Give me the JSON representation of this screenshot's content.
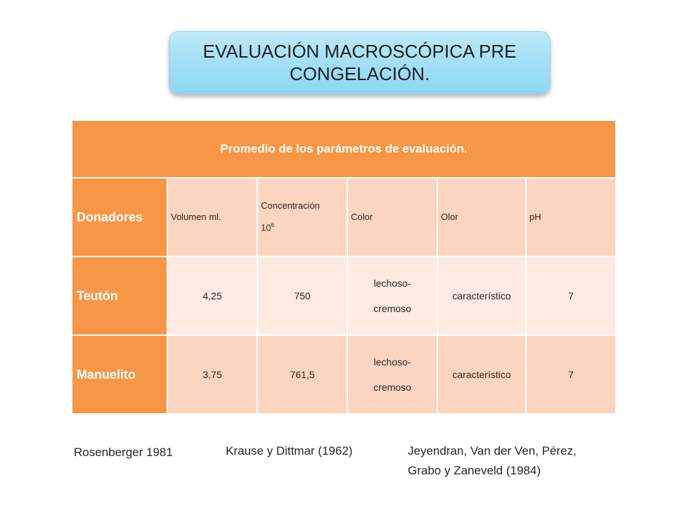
{
  "title": "EVALUACIÓN MACROSCÓPICA PRE CONGELACIÓN.",
  "table": {
    "caption": "Promedio de los parámetros de evaluación.",
    "header_row": {
      "label": "Donadores",
      "volumen": "Volumen ml.",
      "concentracion": "Concentración",
      "concentracion_base": "10",
      "concentracion_exp": "6",
      "color": "Color",
      "olor": "Olor",
      "ph": "pH"
    },
    "rows": [
      {
        "name": "Teutón",
        "volumen": "4,25",
        "concentracion": "750",
        "color_l1": "lechoso-",
        "color_l2": "cremoso",
        "olor": "característico",
        "ph": "7"
      },
      {
        "name": "Manuelito",
        "volumen": "3,75",
        "concentracion": "761,5",
        "color_l1": "lechoso-",
        "color_l2": "cremoso",
        "olor": "característico",
        "ph": "7"
      }
    ]
  },
  "references": {
    "ref1": "Rosenberger 1981",
    "ref2": "Krause y Dittmar (1962)",
    "ref3_l1": "Jeyendran, Van der Ven, Pérez,",
    "ref3_l2": "Grabo y Zaneveld  (1984)"
  },
  "colors": {
    "orange": "#f79646",
    "peach_dark": "#fcd5c0",
    "peach_light": "#fdeae0",
    "title_blue": "#a6e0f6"
  }
}
